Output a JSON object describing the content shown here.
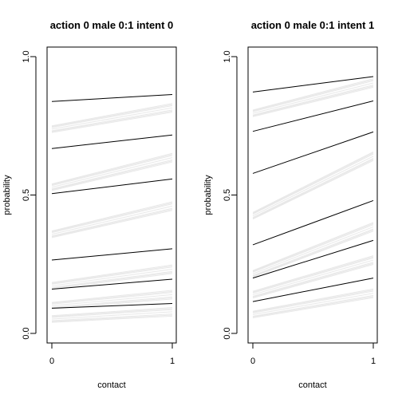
{
  "chart_data": [
    {
      "type": "line",
      "title": "action 0 male 0:1 intent 0",
      "xlabel": "contact",
      "ylabel": "probability",
      "x": [
        0,
        1
      ],
      "xticks": [
        "0",
        "1"
      ],
      "yticks": [
        "0.0",
        "0.5",
        "1.0"
      ],
      "ylim": [
        0,
        1
      ],
      "grid": false,
      "series": [
        {
          "values": [
            0.838,
            0.863
          ]
        },
        {
          "values": [
            0.668,
            0.717
          ]
        },
        {
          "values": [
            0.505,
            0.558
          ]
        },
        {
          "values": [
            0.265,
            0.306
          ]
        },
        {
          "values": [
            0.16,
            0.196
          ]
        },
        {
          "values": [
            0.091,
            0.108
          ]
        }
      ],
      "faint_series": [
        {
          "values": [
            0.738,
            0.815
          ]
        },
        {
          "values": [
            0.528,
            0.635
          ]
        },
        {
          "values": [
            0.358,
            0.46
          ]
        },
        {
          "values": [
            0.172,
            0.232
          ]
        },
        {
          "values": [
            0.1,
            0.14
          ]
        },
        {
          "values": [
            0.052,
            0.078
          ]
        }
      ]
    },
    {
      "type": "line",
      "title": "action 0 male 0:1 intent 1",
      "xlabel": "contact",
      "ylabel": "probability",
      "x": [
        0,
        1
      ],
      "xticks": [
        "0",
        "1"
      ],
      "yticks": [
        "0.0",
        "0.5",
        "1.0"
      ],
      "ylim": [
        0,
        1
      ],
      "grid": false,
      "series": [
        {
          "values": [
            0.872,
            0.928
          ]
        },
        {
          "values": [
            0.73,
            0.84
          ]
        },
        {
          "values": [
            0.578,
            0.728
          ]
        },
        {
          "values": [
            0.32,
            0.48
          ]
        },
        {
          "values": [
            0.2,
            0.336
          ]
        },
        {
          "values": [
            0.115,
            0.2
          ]
        }
      ],
      "faint_series": [
        {
          "values": [
            0.795,
            0.905
          ]
        },
        {
          "values": [
            0.425,
            0.64
          ]
        },
        {
          "values": [
            0.215,
            0.385
          ]
        },
        {
          "values": [
            0.14,
            0.265
          ]
        },
        {
          "values": [
            0.068,
            0.145
          ]
        }
      ]
    }
  ]
}
